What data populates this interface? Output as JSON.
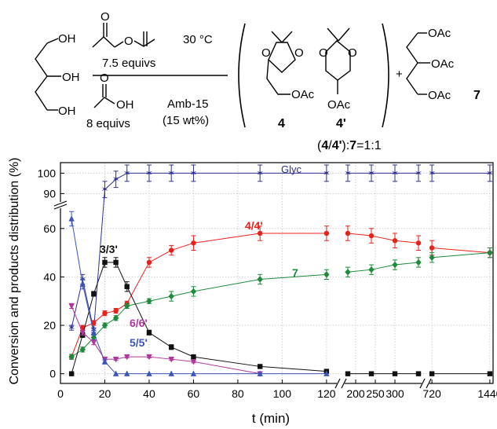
{
  "scheme": {
    "reactant_groups": [
      "OH",
      "OH",
      "OH"
    ],
    "reagent_top_ether_o": "O",
    "reagent_top_carbonyl_o": "O",
    "reagent_top_equiv": "7.5 equivs",
    "temperature": "30 °C",
    "reagent_bottom_oh": "OH",
    "reagent_bottom_carbonyl_o": "O",
    "reagent_bottom_equiv": "8 equivs",
    "catalyst": "Amb-15",
    "catalyst_loading": "(15 wt%)",
    "product_a_o1": "O",
    "product_a_o2": "O",
    "product_a_oac": "OAc",
    "product_a_label": "4",
    "product_b_o1": "O",
    "product_b_o2": "O",
    "product_b_oac": "OAc",
    "product_b_label": "4'",
    "plus": "+",
    "product_c_oac": [
      "OAc",
      "OAc",
      "OAc"
    ],
    "product_c_label": "7",
    "ratio_left": "(",
    "ratio_4": "4",
    "ratio_slash": "/",
    "ratio_4p": "4'",
    "ratio_mid": "):",
    "ratio_7": "7",
    "ratio_value": "=1:1"
  },
  "chart_data": {
    "type": "line",
    "xlabel": "t (min)",
    "ylabel": "Conversion and products distribution (%)",
    "x_segments": [
      {
        "range": [
          0,
          125
        ],
        "ticks": [
          0,
          20,
          40,
          60,
          80,
          100,
          120
        ]
      },
      {
        "range": [
          170,
          370
        ],
        "ticks": [
          200,
          250,
          300
        ]
      },
      {
        "range": [
          680,
          1480
        ],
        "ticks": [
          720,
          1440
        ]
      }
    ],
    "y_segments": [
      {
        "range": [
          -4,
          70
        ],
        "ticks": [
          0,
          20,
          40,
          60
        ]
      },
      {
        "range": [
          84,
          104
        ],
        "ticks": [
          90,
          100
        ]
      }
    ],
    "grid": true,
    "series": [
      {
        "name": "Glyc",
        "color": "#2e3192",
        "marker": "star",
        "x": [
          5,
          10,
          15,
          20,
          25,
          30,
          40,
          50,
          60,
          90,
          120,
          180,
          240,
          300,
          360,
          720,
          1440
        ],
        "y": [
          19,
          39,
          18,
          92,
          97,
          100,
          100,
          100,
          100,
          100,
          100,
          100,
          100,
          100,
          100,
          100,
          100
        ],
        "err": [
          1,
          2,
          1,
          4,
          4,
          4,
          4,
          4,
          4,
          4,
          4,
          4,
          4,
          4,
          4,
          4,
          4
        ]
      },
      {
        "name": "4/4'",
        "color": "#e8211b",
        "marker": "circle",
        "x": [
          5,
          10,
          15,
          20,
          25,
          30,
          40,
          50,
          60,
          90,
          120,
          180,
          240,
          300,
          360,
          720,
          1440
        ],
        "y": [
          7,
          19,
          21,
          25,
          26,
          29,
          46,
          51,
          54,
          58,
          58,
          58,
          57,
          55,
          54,
          52,
          50
        ],
        "err": [
          1,
          1,
          1,
          1,
          1,
          1,
          2,
          2,
          3,
          3,
          3,
          3,
          3,
          3,
          3,
          3,
          2
        ]
      },
      {
        "name": "7",
        "color": "#1e8a3c",
        "marker": "diamond",
        "x": [
          5,
          10,
          15,
          20,
          25,
          30,
          40,
          50,
          60,
          90,
          120,
          180,
          240,
          300,
          360,
          720,
          1440
        ],
        "y": [
          7,
          10,
          15,
          20,
          23,
          28,
          30,
          32,
          34,
          39,
          41,
          42,
          43,
          45,
          46,
          48,
          50
        ],
        "err": [
          1,
          1,
          1,
          1,
          1,
          1,
          1,
          2,
          2,
          2,
          2,
          2,
          2,
          2,
          2,
          2,
          2
        ]
      },
      {
        "name": "3/3'",
        "color": "#111111",
        "marker": "square",
        "x": [
          5,
          10,
          15,
          20,
          25,
          30,
          40,
          50,
          60,
          90,
          120,
          180,
          240,
          300,
          360,
          720,
          1440
        ],
        "y": [
          0,
          16,
          33,
          46,
          46,
          36,
          17,
          11,
          7,
          3,
          1,
          0,
          0,
          0,
          0,
          0,
          0
        ],
        "err": [
          0,
          1,
          1,
          2,
          2,
          2,
          1,
          1,
          0.5,
          0.5,
          0.5,
          0,
          0,
          0,
          0,
          0,
          0
        ]
      },
      {
        "name": "6/6'",
        "color": "#b0369c",
        "marker": "tri-down",
        "x": [
          5,
          10,
          15,
          20,
          25,
          30,
          40,
          50,
          60,
          90
        ],
        "y": [
          28,
          17,
          13,
          6,
          6,
          7,
          7,
          6,
          5,
          0
        ],
        "err": [
          1,
          1,
          1,
          0.5,
          0.5,
          0.5,
          0.5,
          0.5,
          0.5,
          0
        ]
      },
      {
        "name": "5/5'",
        "color": "#3b56b8",
        "marker": "tri-up",
        "x": [
          5,
          10,
          15,
          20,
          25,
          30,
          40,
          50,
          60,
          90,
          120
        ],
        "y": [
          64,
          37,
          17,
          5,
          0,
          0,
          0,
          0,
          0,
          0,
          0
        ],
        "err": [
          3,
          2,
          1,
          1,
          0,
          0,
          0,
          0,
          0,
          0,
          0
        ]
      }
    ]
  }
}
